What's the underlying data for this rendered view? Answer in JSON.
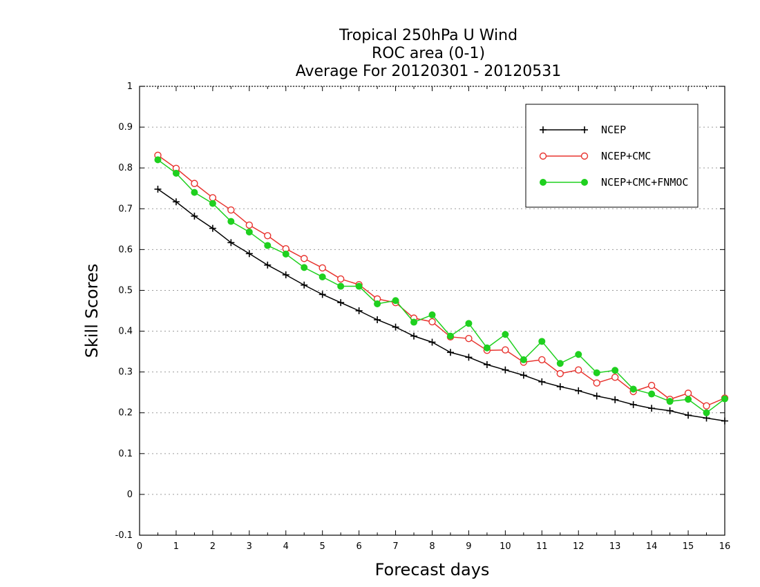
{
  "chart_data": {
    "type": "line",
    "title": [
      "Tropical 250hPa U Wind",
      "ROC area (0-1)",
      "Average For 20120301 - 20120531"
    ],
    "xlabel": "Forecast days",
    "ylabel": "Skill Scores",
    "xlim": [
      0,
      16
    ],
    "ylim": [
      -0.1,
      1
    ],
    "xticks": [
      0,
      1,
      2,
      3,
      4,
      5,
      6,
      7,
      8,
      9,
      10,
      11,
      12,
      13,
      14,
      15,
      16
    ],
    "yticks": [
      -0.1,
      0,
      0.1,
      0.2,
      0.3,
      0.4,
      0.5,
      0.6,
      0.7,
      0.8,
      0.9,
      1
    ],
    "ytick_labels": [
      "-0.1",
      "0",
      "0.1",
      "0.2",
      "0.3",
      "0.4",
      "0.5",
      "0.6",
      "0.7",
      "0.8",
      "0.9",
      "1"
    ],
    "grid": "horizontal dotted",
    "legend_position": "top-right",
    "x": [
      0.5,
      1,
      1.5,
      2,
      2.5,
      3,
      3.5,
      4,
      4.5,
      5,
      5.5,
      6,
      6.5,
      7,
      7.5,
      8,
      8.5,
      9,
      9.5,
      10,
      10.5,
      11,
      11.5,
      12,
      12.5,
      13,
      13.5,
      14,
      14.5,
      15,
      15.5,
      16
    ],
    "series": [
      {
        "name": "NCEP",
        "color": "#000000",
        "marker": "plus",
        "values": [
          0.748,
          0.717,
          0.682,
          0.652,
          0.617,
          0.59,
          0.562,
          0.538,
          0.513,
          0.49,
          0.47,
          0.45,
          0.428,
          0.41,
          0.388,
          0.373,
          0.348,
          0.336,
          0.318,
          0.305,
          0.292,
          0.276,
          0.264,
          0.254,
          0.241,
          0.232,
          0.22,
          0.211,
          0.205,
          0.194,
          0.187,
          0.18
        ]
      },
      {
        "name": "NCEP+CMC",
        "color": "#e8332e",
        "marker": "open-circle",
        "values": [
          0.831,
          0.799,
          0.762,
          0.727,
          0.697,
          0.66,
          0.634,
          0.602,
          0.578,
          0.555,
          0.528,
          0.514,
          0.479,
          0.47,
          0.432,
          0.423,
          0.386,
          0.382,
          0.353,
          0.354,
          0.324,
          0.33,
          0.296,
          0.305,
          0.273,
          0.287,
          0.252,
          0.267,
          0.233,
          0.248,
          0.217,
          0.236
        ]
      },
      {
        "name": "NCEP+CMC+FNMOC",
        "color": "#1fd01f",
        "marker": "filled-circle",
        "values": [
          0.82,
          0.787,
          0.74,
          0.713,
          0.669,
          0.643,
          0.61,
          0.589,
          0.556,
          0.533,
          0.51,
          0.51,
          0.467,
          0.475,
          0.422,
          0.44,
          0.388,
          0.419,
          0.359,
          0.392,
          0.33,
          0.375,
          0.321,
          0.343,
          0.298,
          0.304,
          0.258,
          0.246,
          0.228,
          0.233,
          0.2,
          0.234
        ]
      }
    ]
  }
}
